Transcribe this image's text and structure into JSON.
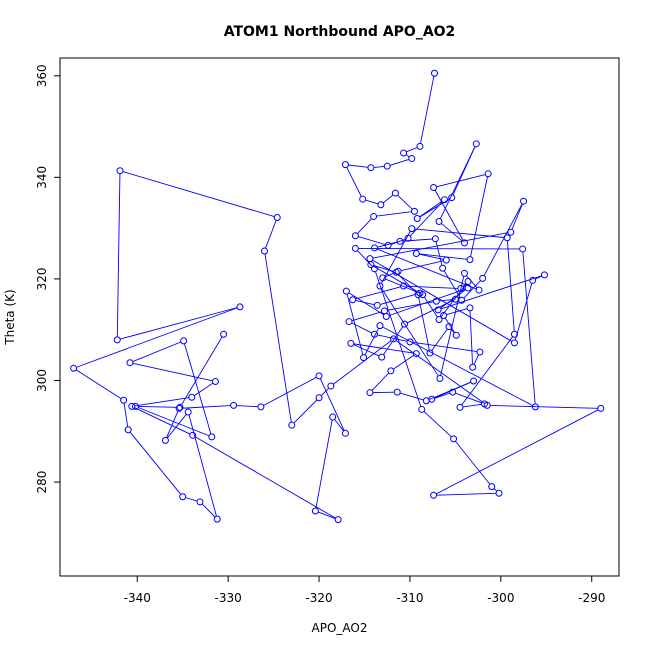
{
  "chart_data": {
    "type": "line",
    "title": "ATOM1 Northbound APO_AO2",
    "xlabel": "APO_AO2",
    "ylabel": "Theta (K)",
    "xlim": [
      -348.5,
      -287.0
    ],
    "ylim": [
      261.5,
      363.5
    ],
    "xticks": [
      -340,
      -330,
      -320,
      -310,
      -300,
      -290
    ],
    "xtick_labels": [
      "-340",
      "-330",
      "-320",
      "-310",
      "-300",
      "-290"
    ],
    "yticks": [
      280,
      300,
      320,
      340,
      360
    ],
    "ytick_labels": [
      "280",
      "300",
      "320",
      "340",
      "360"
    ],
    "line_color": "#0000ff",
    "marker": "open-circle",
    "grid": false,
    "legend": "none",
    "series": [
      {
        "x": [
          -307.3,
          -308.9,
          -310.7,
          -309.8,
          -312.5,
          -314.3,
          -317.1,
          -315.2,
          -313.2,
          -311.6,
          -309.5,
          -314.0,
          -316.0,
          -312.4,
          -310.2,
          -306.2,
          -309.2,
          -305.4,
          -302.7,
          -306.8,
          -304.0,
          -307.4,
          -301.4,
          -303.4,
          -309.3,
          -306.0,
          -311.3,
          -313.0,
          -308.9,
          -313.6,
          -316.3,
          -310.7,
          -304.4,
          -303.6,
          -306.8,
          -308.6,
          -314.3,
          -311.5,
          -309.1,
          -307.8,
          -305.7,
          -304.9,
          -306.3,
          -303.4,
          -303.1,
          -302.3,
          -310.0,
          -313.9,
          -316.7,
          -312.8,
          -307.1,
          -305.0,
          -310.6,
          -313.1,
          -316.5,
          -309.3,
          -312.1,
          -314.4,
          -311.4,
          -308.2,
          -303.0,
          -307.6,
          -305.3,
          -301.8,
          -304.5,
          -298.5,
          -299.3,
          -309.8,
          -313.3,
          -306.7,
          -304.0,
          -302.4,
          -313.9,
          -311.1,
          -307.2,
          -306.4,
          -304.3,
          -302.0,
          -297.5,
          -298.9,
          -314.4,
          -298.5,
          -296.5,
          -295.2,
          -306.9,
          -303.6,
          -312.6,
          -317.0,
          -315.1,
          -313.3,
          -296.2,
          -297.6,
          -316.0,
          -313.9,
          -308.7,
          -305.2,
          -301.0,
          -300.2,
          -307.4,
          -289.0,
          -301.5,
          -311.8,
          -318.7,
          -320.0,
          -323.0,
          -326.0,
          -324.6,
          -341.9,
          -342.2,
          -328.7,
          -347.0,
          -341.5,
          -341.0,
          -335.0,
          -333.1,
          -331.2,
          -334.4,
          -336.9,
          -335.4,
          -329.4,
          -326.4,
          -320.0,
          -317.1,
          -318.5,
          -320.4,
          -317.9,
          -333.9,
          -340.6,
          -334.0,
          -331.4,
          -340.8,
          -334.9,
          -331.8,
          -340.2,
          -335.3,
          -330.5
        ],
        "y": [
          360.5,
          346.1,
          344.8,
          343.7,
          342.2,
          341.9,
          342.5,
          335.7,
          334.6,
          336.9,
          333.3,
          332.3,
          328.5,
          326.6,
          328.0,
          335.6,
          331.9,
          336.0,
          346.6,
          331.3,
          327.1,
          338.0,
          340.7,
          323.8,
          325.0,
          323.7,
          321.5,
          320.2,
          317.2,
          314.8,
          315.9,
          318.6,
          318.1,
          319.5,
          312.0,
          316.9,
          322.8,
          321.3,
          316.9,
          305.4,
          310.6,
          308.9,
          312.8,
          314.3,
          302.6,
          305.6,
          307.6,
          309.1,
          311.6,
          313.7,
          315.6,
          316.0,
          311.1,
          304.6,
          307.3,
          305.3,
          301.9,
          297.6,
          297.7,
          296.0,
          299.9,
          296.3,
          297.7,
          295.4,
          294.7,
          309.1,
          328.1,
          329.9,
          318.6,
          300.4,
          321.1,
          317.8,
          326.1,
          327.4,
          327.9,
          322.1,
          315.8,
          320.1,
          335.3,
          329.2,
          324.0,
          307.4,
          319.7,
          320.8,
          313.9,
          318.2,
          312.6,
          317.6,
          304.5,
          310.8,
          294.8,
          325.9,
          326.0,
          322.0,
          294.3,
          288.5,
          279.1,
          277.8,
          277.4,
          294.5,
          295.1,
          308.2,
          298.9,
          296.6,
          291.2,
          325.5,
          332.1,
          341.3,
          308.0,
          314.5,
          302.4,
          296.1,
          290.3,
          277.1,
          276.1,
          272.7,
          293.8,
          288.2,
          294.5,
          295.1,
          294.8,
          300.9,
          289.6,
          292.8,
          274.3,
          272.6,
          289.2,
          294.9,
          296.7,
          299.8,
          303.5,
          307.8,
          288.9,
          294.9,
          294.7,
          309.1
        ]
      }
    ]
  }
}
